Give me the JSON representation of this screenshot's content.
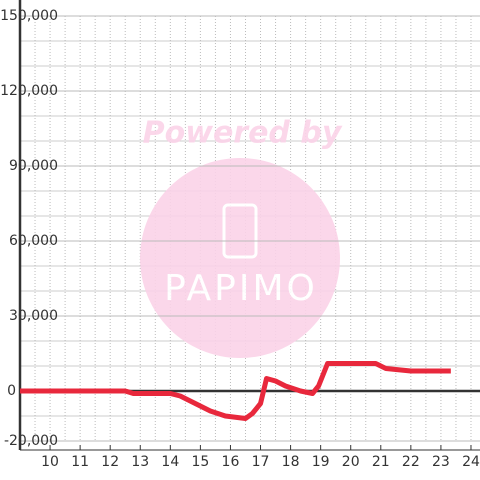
{
  "chart_data": {
    "type": "line",
    "watermark": {
      "top": "Powered by",
      "logo": "PAPIMO"
    },
    "x": [
      9.0,
      12.5,
      12.77,
      14.0,
      14.33,
      14.83,
      15.33,
      15.83,
      16.5,
      16.73,
      17.0,
      17.2,
      17.5,
      17.83,
      18.33,
      18.73,
      18.93,
      19.23,
      20.83,
      21.17,
      22.0,
      23.33
    ],
    "series": [
      {
        "color": "#e8283c",
        "values": [
          0,
          0,
          -1000,
          -1000,
          -2000,
          -5000,
          -8000,
          -10000,
          -11000,
          -9000,
          -5000,
          5000,
          4000,
          2000,
          0,
          -1000,
          2000,
          11000,
          11000,
          9000,
          8000,
          8000
        ]
      }
    ],
    "xlim": [
      9,
      24.3
    ],
    "xticks": [
      10,
      11,
      12,
      13,
      14,
      15,
      16,
      17,
      18,
      19,
      20,
      21,
      22,
      23,
      24
    ],
    "x_minor_step": 0.5,
    "ylim": [
      -20000,
      150000
    ],
    "yticks": [
      {
        "value": -20000,
        "label": "-20,000"
      },
      0,
      {
        "value": 30000,
        "label": "30,000"
      },
      {
        "value": 60000,
        "label": "60,000"
      },
      {
        "value": 90000,
        "label": "90,000"
      },
      {
        "value": 120000,
        "label": "120,000"
      },
      {
        "value": 150000,
        "label": "150,000"
      }
    ],
    "y_minor_step": 10000,
    "grid": true
  }
}
